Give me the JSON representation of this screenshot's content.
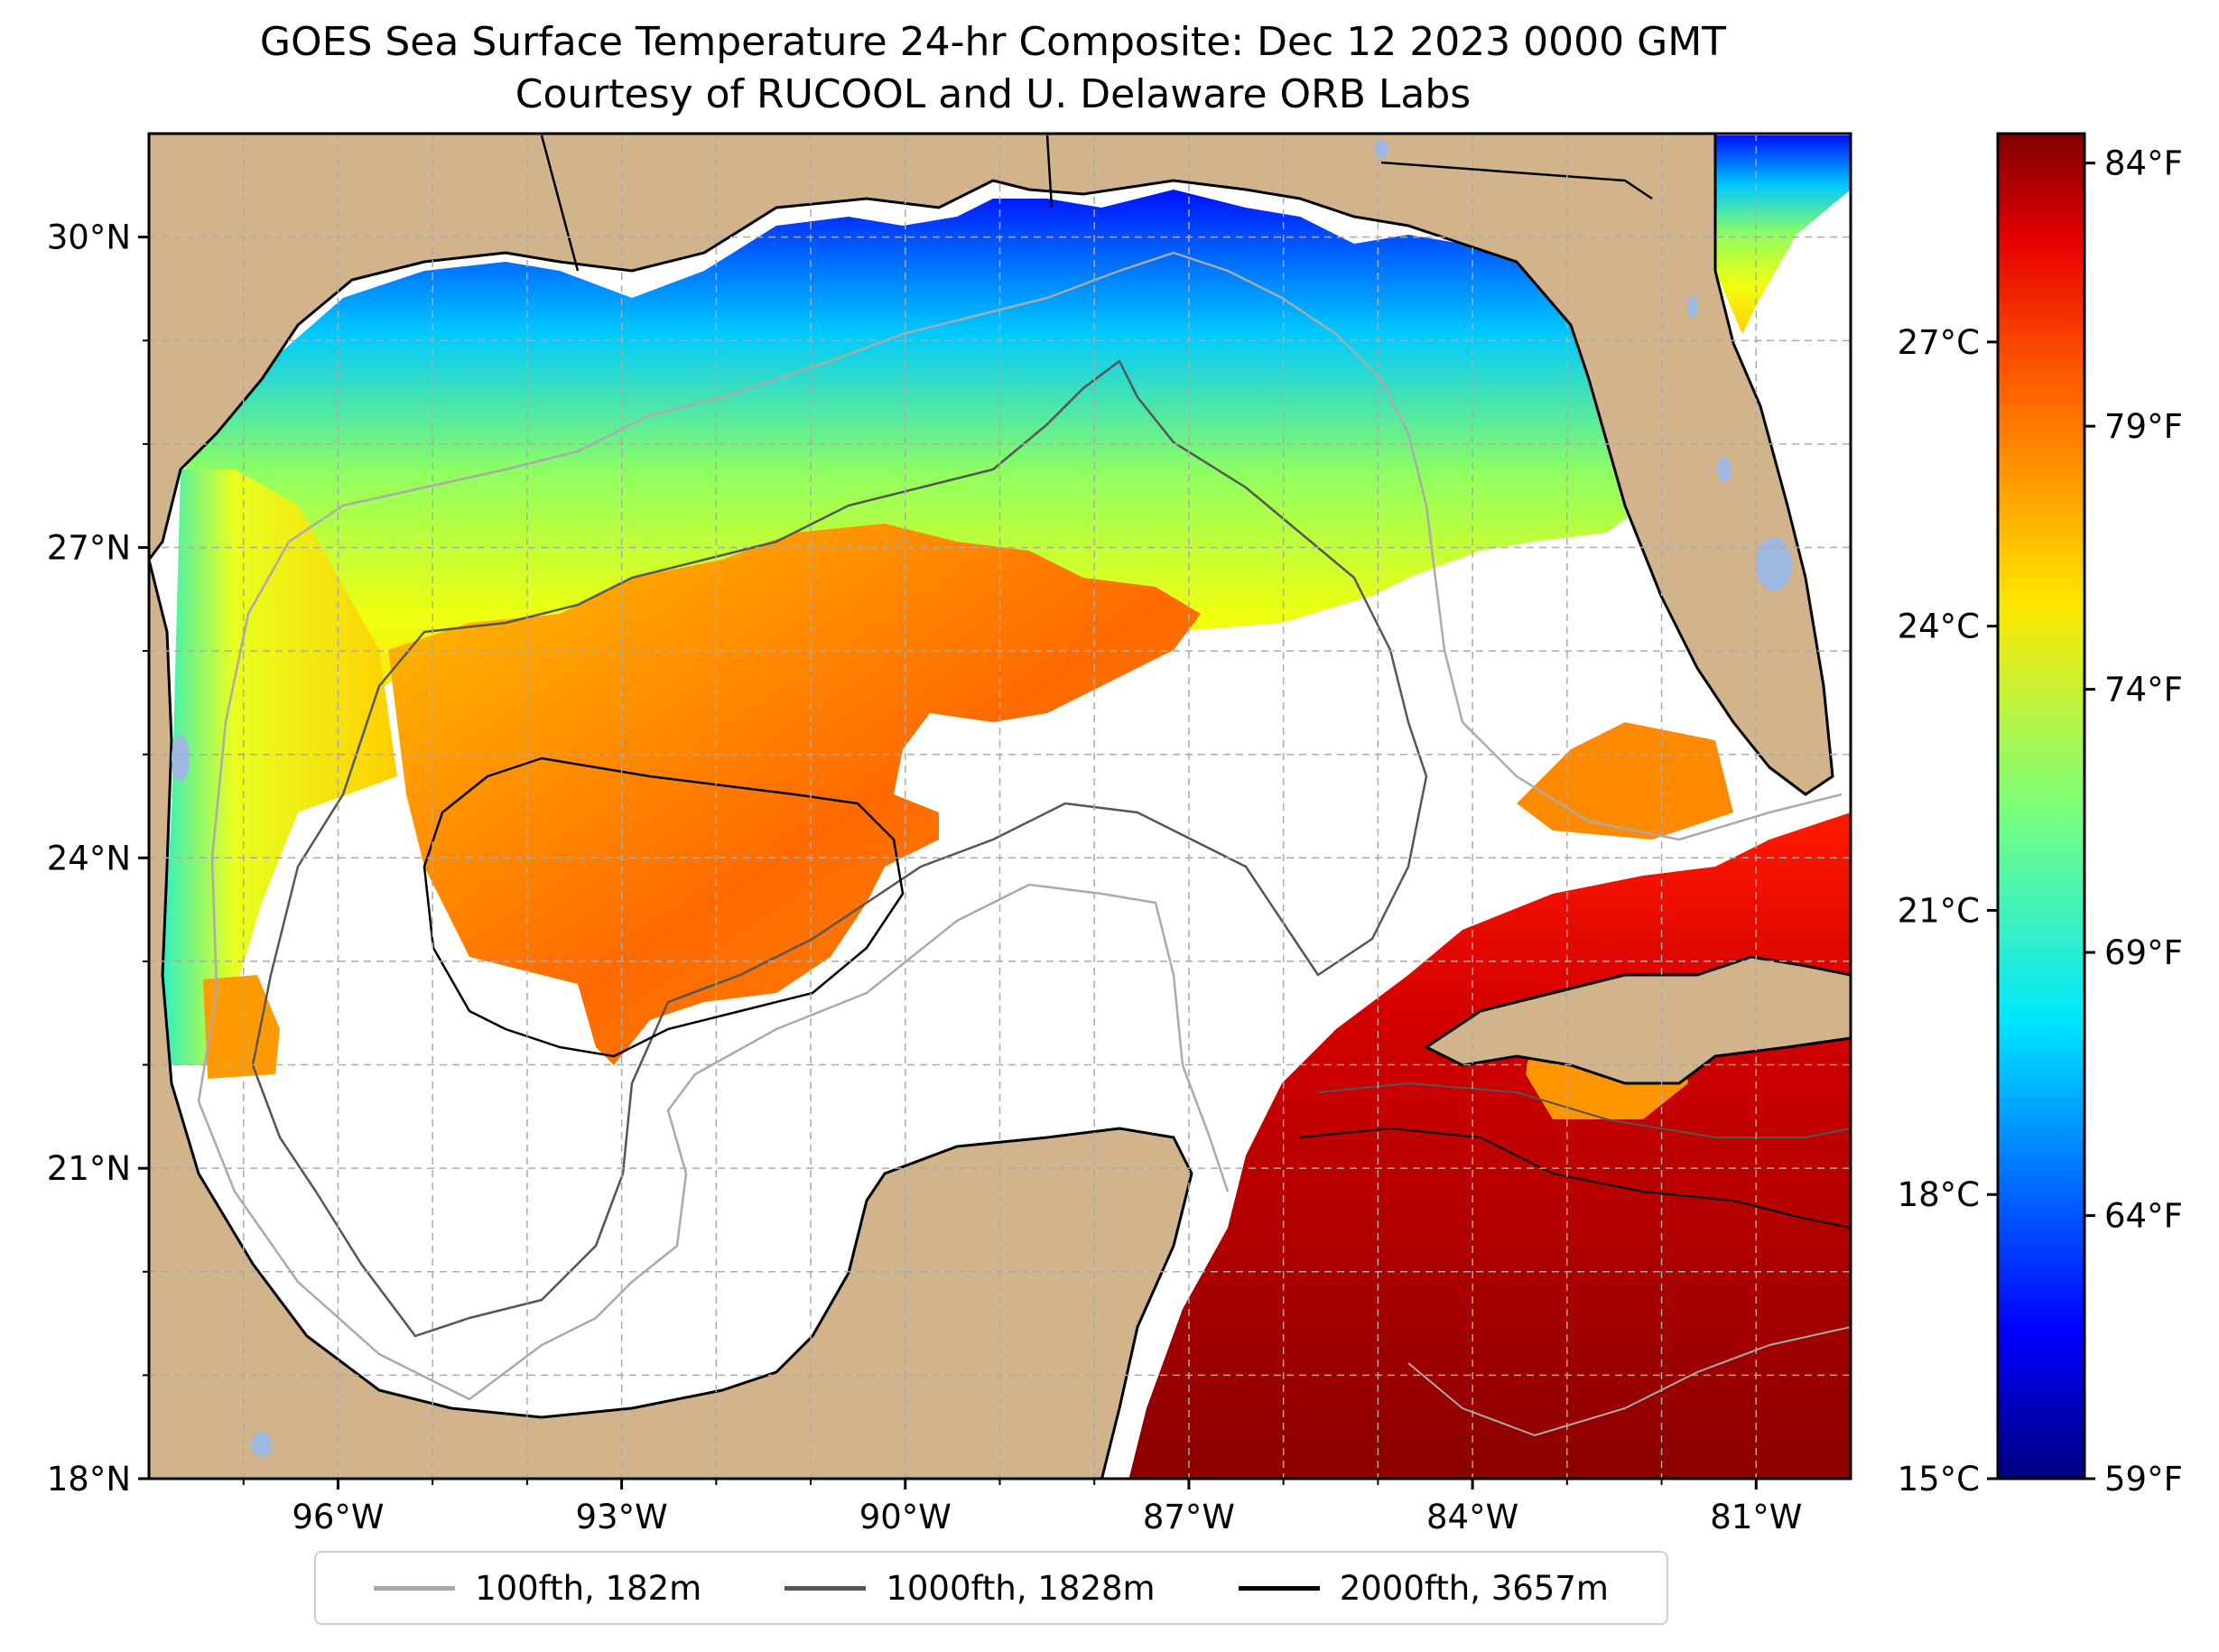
{
  "title": {
    "line1": "GOES Sea Surface Temperature 24-hr Composite: Dec 12 2023 0000 GMT",
    "line2": "Courtesy of RUCOOL and U. Delaware ORB Labs"
  },
  "map": {
    "extent": {
      "lon_min": -98,
      "lon_max": -80,
      "lat_min": 18,
      "lat_max": 31
    },
    "land_color": "#d2b48c",
    "lake_color": "#9fb8e0",
    "grid": "dashed",
    "lat_ticks": [
      "30°N",
      "27°N",
      "24°N",
      "21°N",
      "18°N"
    ],
    "lat_values": [
      30,
      27,
      24,
      21,
      18
    ],
    "lon_ticks": [
      "96°W",
      "93°W",
      "90°W",
      "87°W",
      "84°W",
      "81°W"
    ],
    "lon_values": [
      -96,
      -93,
      -90,
      -87,
      -84,
      -81
    ]
  },
  "colorbar": {
    "colormap": "jet",
    "range_c": [
      15,
      29.2
    ],
    "celsius_ticks": [
      "27°C",
      "24°C",
      "21°C",
      "18°C",
      "15°C"
    ],
    "celsius_values": [
      27,
      24,
      21,
      18,
      15
    ],
    "fahrenheit_ticks": [
      "84°F",
      "79°F",
      "74°F",
      "69°F",
      "64°F",
      "59°F"
    ],
    "fahrenheit_values": [
      84,
      79,
      74,
      69,
      64,
      59
    ]
  },
  "legend": {
    "placement": "bottom-center",
    "items": [
      {
        "label": "100fth, 182m",
        "color": "#aaaaaa"
      },
      {
        "label": "1000fth, 1828m",
        "color": "#555555"
      },
      {
        "label": "2000fth, 3657m",
        "color": "#000000"
      }
    ]
  }
}
